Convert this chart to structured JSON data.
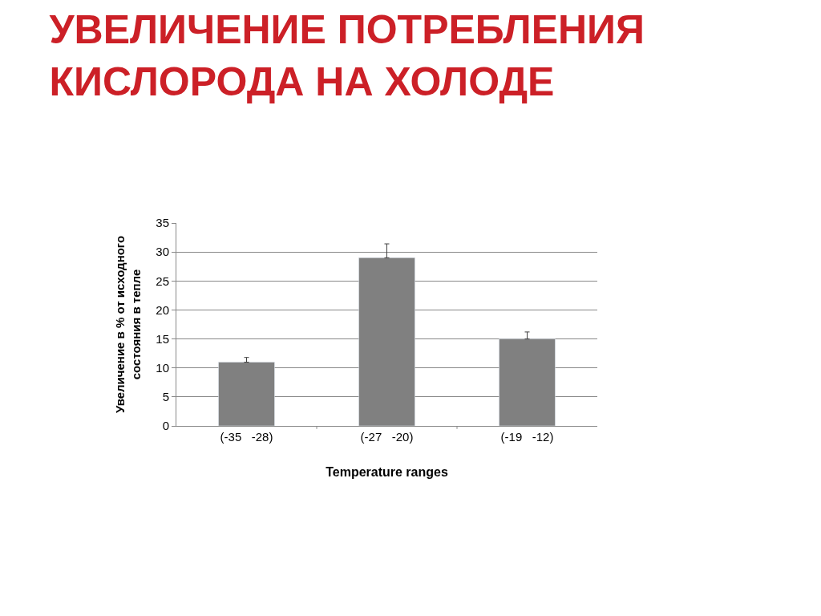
{
  "chart_data": {
    "type": "bar",
    "title": "УВЕЛИЧЕНИЕ ПОТРЕБЛЕНИЯ\nКИСЛОРОДА НА ХОЛОДЕ",
    "xlabel": "Temperature ranges",
    "ylabel": "Увеличение в % от исходного\nсостояния в тепле",
    "categories": [
      "(-35   -28)",
      "(-27   -20)",
      "(-19   -12)"
    ],
    "values": [
      11,
      29,
      15
    ],
    "color": "#808080",
    "errors": [
      [
        11,
        11.8
      ],
      [
        29,
        31.4
      ],
      [
        15,
        16.2
      ]
    ],
    "ylim": [
      0,
      35
    ],
    "yticks": [
      0,
      5,
      10,
      15,
      20,
      25,
      30,
      35
    ],
    "grid": "y",
    "legend": false
  }
}
